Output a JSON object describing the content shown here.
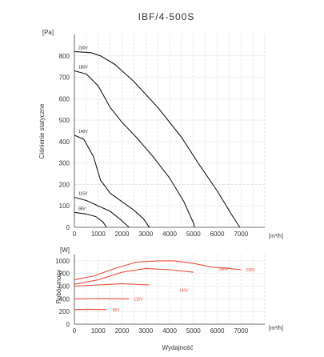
{
  "chart_data": [
    {
      "type": "line",
      "title": "IBF/4-500S",
      "ylabel": "Ciśnienie statyczne",
      "y_unit": "[Pa]",
      "x_unit": "[m³/h]",
      "xlim": [
        0,
        8000
      ],
      "ylim": [
        0,
        900
      ],
      "x_ticks": [
        0,
        1000,
        2000,
        3000,
        4000,
        5000,
        6000,
        7000
      ],
      "y_ticks": [
        0,
        100,
        200,
        300,
        400,
        500,
        600,
        700,
        800
      ],
      "grid": true,
      "series": [
        {
          "name": "230V",
          "points": [
            [
              0,
              820
            ],
            [
              700,
              815
            ],
            [
              1100,
              800
            ],
            [
              1700,
              760
            ],
            [
              2500,
              680
            ],
            [
              3500,
              560
            ],
            [
              4500,
              420
            ],
            [
              5200,
              300
            ],
            [
              6000,
              170
            ],
            [
              6600,
              60
            ],
            [
              6950,
              0
            ]
          ]
        },
        {
          "name": "180V",
          "points": [
            [
              0,
              730
            ],
            [
              500,
              715
            ],
            [
              1000,
              660
            ],
            [
              1500,
              560
            ],
            [
              2000,
              490
            ],
            [
              2600,
              420
            ],
            [
              3300,
              330
            ],
            [
              4000,
              230
            ],
            [
              4600,
              120
            ],
            [
              5000,
              20
            ],
            [
              5050,
              0
            ]
          ]
        },
        {
          "name": "140V",
          "points": [
            [
              0,
              430
            ],
            [
              400,
              410
            ],
            [
              800,
              330
            ],
            [
              1100,
              220
            ],
            [
              1500,
              160
            ],
            [
              2000,
              120
            ],
            [
              2500,
              80
            ],
            [
              2900,
              40
            ],
            [
              3150,
              0
            ]
          ]
        },
        {
          "name": "115V",
          "points": [
            [
              0,
              140
            ],
            [
              500,
              125
            ],
            [
              1000,
              100
            ],
            [
              1500,
              75
            ],
            [
              1900,
              40
            ],
            [
              2300,
              0
            ]
          ]
        },
        {
          "name": "95V",
          "points": [
            [
              0,
              70
            ],
            [
              500,
              62
            ],
            [
              900,
              50
            ],
            [
              1200,
              25
            ],
            [
              1350,
              0
            ]
          ]
        }
      ]
    },
    {
      "type": "line",
      "ylabel": "Pobór mocy",
      "y_unit": "[W]",
      "x_unit": "[m³/h]",
      "xlabel": "Wydajność",
      "xlim": [
        0,
        8000
      ],
      "ylim": [
        0,
        1100
      ],
      "x_ticks": [
        0,
        1000,
        2000,
        3000,
        4000,
        5000,
        6000,
        7000
      ],
      "y_ticks": [
        0,
        200,
        400,
        600,
        800,
        1000
      ],
      "grid": true,
      "series": [
        {
          "name": "230V",
          "points": [
            [
              0,
              700
            ],
            [
              800,
              760
            ],
            [
              1700,
              880
            ],
            [
              2600,
              980
            ],
            [
              3500,
              1000
            ],
            [
              4200,
              1000
            ],
            [
              5000,
              960
            ],
            [
              5800,
              900
            ],
            [
              6500,
              880
            ],
            [
              7000,
              860
            ]
          ]
        },
        {
          "name": "180V",
          "points": [
            [
              0,
              630
            ],
            [
              1000,
              700
            ],
            [
              2000,
              820
            ],
            [
              3000,
              880
            ],
            [
              4000,
              860
            ],
            [
              5000,
              820
            ]
          ]
        },
        {
          "name": "140V",
          "points": [
            [
              0,
              600
            ],
            [
              1000,
              620
            ],
            [
              2000,
              640
            ],
            [
              3150,
              620
            ]
          ]
        },
        {
          "name": "115V",
          "points": [
            [
              0,
              400
            ],
            [
              1000,
              405
            ],
            [
              2300,
              400
            ]
          ]
        },
        {
          "name": "95V",
          "points": [
            [
              0,
              230
            ],
            [
              600,
              235
            ],
            [
              1350,
              230
            ]
          ]
        }
      ]
    }
  ]
}
